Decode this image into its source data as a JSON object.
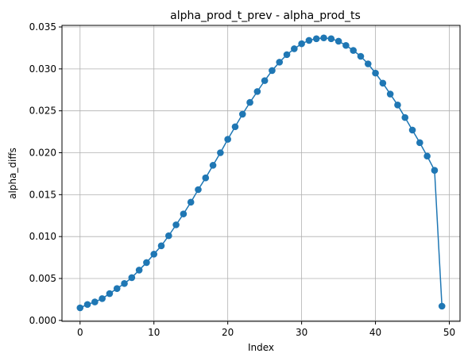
{
  "chart_data": {
    "type": "line",
    "title": "alpha_prod_t_prev - alpha_prod_ts",
    "xlabel": "Index",
    "ylabel": "alpha_diffs",
    "xlim": [
      -2.45,
      51.45
    ],
    "ylim": [
      -0.00011,
      0.03519
    ],
    "xticks": [
      0,
      10,
      20,
      30,
      40,
      50
    ],
    "xtick_labels": [
      "0",
      "10",
      "20",
      "30",
      "40",
      "50"
    ],
    "yticks": [
      0.0,
      0.005,
      0.01,
      0.015,
      0.02,
      0.025,
      0.03,
      0.035
    ],
    "ytick_labels": [
      "0.000",
      "0.005",
      "0.010",
      "0.015",
      "0.020",
      "0.025",
      "0.030",
      "0.035"
    ],
    "grid": true,
    "marker": "circle",
    "color": "#1f77b4",
    "series": [
      {
        "x": [
          0,
          1,
          2,
          3,
          4,
          5,
          6,
          7,
          8,
          9,
          10,
          11,
          12,
          13,
          14,
          15,
          16,
          17,
          18,
          19,
          20,
          21,
          22,
          23,
          24,
          25,
          26,
          27,
          28,
          29,
          30,
          31,
          32,
          33,
          34,
          35,
          36,
          37,
          38,
          39,
          40,
          41,
          42,
          43,
          44,
          45,
          46,
          47,
          48,
          49
        ],
        "values": [
          0.0015,
          0.0019,
          0.0022,
          0.0026,
          0.0032,
          0.0038,
          0.0044,
          0.0051,
          0.006,
          0.0069,
          0.0079,
          0.0089,
          0.0101,
          0.0114,
          0.0127,
          0.0141,
          0.0156,
          0.017,
          0.0185,
          0.02,
          0.0216,
          0.0231,
          0.0246,
          0.026,
          0.0273,
          0.0286,
          0.0298,
          0.0308,
          0.0317,
          0.0324,
          0.033,
          0.0334,
          0.0336,
          0.0337,
          0.0336,
          0.0333,
          0.0328,
          0.0322,
          0.0315,
          0.0306,
          0.0295,
          0.0283,
          0.027,
          0.0257,
          0.0242,
          0.0227,
          0.0212,
          0.0196,
          0.0179,
          0.0017
        ]
      }
    ]
  }
}
